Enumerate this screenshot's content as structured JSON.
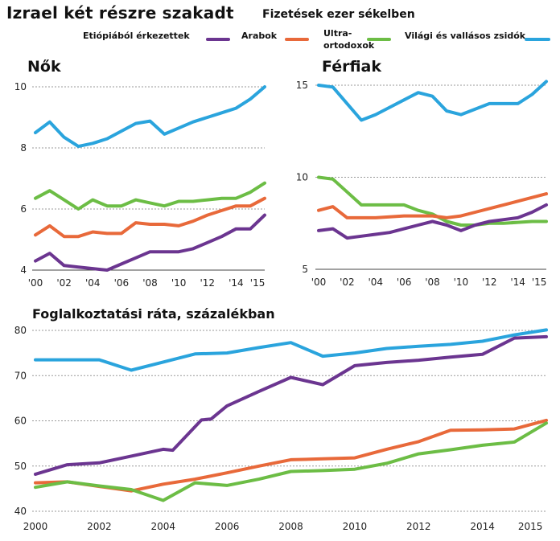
{
  "header": {
    "title": "Izrael két részre szakadt",
    "subtitle": "Fizetések ezer sékelben"
  },
  "legend": {
    "ethiopian": "Etiópiából érkezettek",
    "arab": "Arabok",
    "ultra_line1": "Ultra-",
    "ultra_line2": "ortodoxok",
    "secular": "Világi és vallásos zsidók"
  },
  "colors": {
    "ethiopian": "#6b3590",
    "arab": "#e8693a",
    "ultra": "#6cbd45",
    "secular": "#2aa4dd",
    "grid": "#999999"
  },
  "chart_data": [
    {
      "type": "line",
      "title": "Nők",
      "x_tick_labels": [
        "'00",
        "'02",
        "'04",
        "'06",
        "'08",
        "'10",
        "'12",
        "'14",
        "'15"
      ],
      "ylim": [
        4,
        10
      ],
      "y_ticks": [
        4,
        6,
        8,
        10
      ],
      "series": [
        {
          "key": "secular",
          "name": "Világi és vallásos zsidók",
          "x": [
            2000,
            2001,
            2002,
            2003,
            2004,
            2005,
            2006,
            2007,
            2008,
            2009,
            2010,
            2011,
            2012,
            2013,
            2014,
            2015,
            2016
          ],
          "values": [
            8.5,
            8.85,
            8.35,
            8.05,
            8.15,
            8.3,
            8.55,
            8.8,
            8.88,
            8.45,
            8.65,
            8.85,
            9.0,
            9.15,
            9.3,
            9.6,
            10.0
          ]
        },
        {
          "key": "ultra",
          "name": "Ultra-ortodoxok",
          "x": [
            2000,
            2001,
            2002,
            2003,
            2004,
            2005,
            2006,
            2007,
            2008,
            2009,
            2010,
            2011,
            2012,
            2013,
            2014,
            2015,
            2016
          ],
          "values": [
            6.35,
            6.6,
            6.3,
            6.0,
            6.3,
            6.1,
            6.1,
            6.3,
            6.2,
            6.1,
            6.25,
            6.25,
            6.3,
            6.35,
            6.35,
            6.55,
            6.85
          ]
        },
        {
          "key": "arab",
          "name": "Arabok",
          "x": [
            2000,
            2001,
            2002,
            2003,
            2004,
            2005,
            2006,
            2007,
            2008,
            2009,
            2010,
            2011,
            2012,
            2013,
            2014,
            2015,
            2016
          ],
          "values": [
            5.15,
            5.45,
            5.1,
            5.1,
            5.25,
            5.2,
            5.2,
            5.55,
            5.5,
            5.5,
            5.45,
            5.6,
            5.8,
            5.95,
            6.1,
            6.1,
            6.35
          ]
        },
        {
          "key": "ethiopian",
          "name": "Etiópiából érkezettek",
          "x": [
            2000,
            2001,
            2002,
            2003,
            2004,
            2005,
            2006,
            2007,
            2008,
            2009,
            2010,
            2011,
            2012,
            2013,
            2014,
            2015,
            2016
          ],
          "values": [
            4.3,
            4.55,
            4.15,
            4.1,
            4.05,
            4.0,
            4.2,
            4.4,
            4.6,
            4.6,
            4.6,
            4.7,
            4.9,
            5.1,
            5.35,
            5.35,
            5.8
          ]
        }
      ]
    },
    {
      "type": "line",
      "title": "Férfiak",
      "x_tick_labels": [
        "'00",
        "'02",
        "'04",
        "'06",
        "'08",
        "'10",
        "'12",
        "'14",
        "'15"
      ],
      "ylim": [
        5,
        15
      ],
      "y_ticks": [
        5,
        10,
        15
      ],
      "series": [
        {
          "key": "secular",
          "name": "Világi és vallásos zsidók",
          "x": [
            2000,
            2001,
            2002,
            2003,
            2004,
            2005,
            2006,
            2007,
            2008,
            2009,
            2010,
            2011,
            2012,
            2013,
            2014,
            2015,
            2016
          ],
          "values": [
            15.0,
            14.9,
            14.0,
            13.1,
            13.4,
            13.8,
            14.2,
            14.6,
            14.4,
            13.6,
            13.4,
            13.7,
            14.0,
            14.0,
            14.0,
            14.5,
            15.2
          ]
        },
        {
          "key": "ultra",
          "name": "Ultra-ortodoxok",
          "x": [
            2000,
            2001,
            2002,
            2003,
            2004,
            2005,
            2006,
            2007,
            2008,
            2009,
            2010,
            2011,
            2012,
            2013,
            2014,
            2015,
            2016
          ],
          "values": [
            10.0,
            9.9,
            9.2,
            8.5,
            8.5,
            8.5,
            8.5,
            8.2,
            8.0,
            7.6,
            7.4,
            7.4,
            7.5,
            7.5,
            7.55,
            7.6,
            7.6
          ]
        },
        {
          "key": "arab",
          "name": "Arabok",
          "x": [
            2000,
            2001,
            2002,
            2003,
            2004,
            2005,
            2006,
            2007,
            2008,
            2009,
            2010,
            2011,
            2012,
            2013,
            2014,
            2015,
            2016
          ],
          "values": [
            8.2,
            8.4,
            7.8,
            7.8,
            7.8,
            7.85,
            7.9,
            7.9,
            7.9,
            7.8,
            7.9,
            8.1,
            8.3,
            8.5,
            8.7,
            8.9,
            9.1
          ]
        },
        {
          "key": "ethiopian",
          "name": "Etiópiából érkezettek",
          "x": [
            2000,
            2001,
            2002,
            2003,
            2004,
            2005,
            2006,
            2007,
            2008,
            2009,
            2010,
            2011,
            2012,
            2013,
            2014,
            2015,
            2016
          ],
          "values": [
            7.1,
            7.2,
            6.7,
            6.8,
            6.9,
            7.0,
            7.2,
            7.4,
            7.6,
            7.4,
            7.1,
            7.4,
            7.6,
            7.7,
            7.8,
            8.1,
            8.5
          ]
        }
      ]
    },
    {
      "type": "line",
      "title": "Foglalkoztatási ráta, százalékban",
      "x_tick_labels": [
        "2000",
        "2002",
        "2004",
        "2006",
        "2008",
        "2010",
        "2012",
        "2014",
        "2015"
      ],
      "ylim": [
        40,
        80
      ],
      "y_ticks": [
        40,
        50,
        60,
        70,
        80
      ],
      "series": [
        {
          "key": "secular",
          "name": "Világi és vallásos zsidók",
          "x": [
            2000,
            2001,
            2002,
            2003,
            2004,
            2005,
            2006,
            2007,
            2008,
            2009,
            2010,
            2011,
            2012,
            2013,
            2014,
            2015,
            2016
          ],
          "values": [
            73.5,
            73.5,
            73.5,
            71.2,
            73.0,
            74.8,
            75.0,
            76.2,
            77.3,
            74.3,
            75.0,
            76.0,
            76.5,
            76.9,
            77.6,
            79.0,
            80.1
          ]
        },
        {
          "key": "ethiopian",
          "name": "Etiópiából érkezettek",
          "x": [
            2000,
            2001,
            2002,
            2003,
            2004,
            2004.3,
            2005.2,
            2005.5,
            2006,
            2007,
            2008,
            2009,
            2010,
            2011,
            2012,
            2013,
            2014,
            2015,
            2016
          ],
          "values": [
            48.2,
            50.3,
            50.7,
            52.2,
            53.7,
            53.5,
            60.2,
            60.4,
            63.3,
            66.5,
            69.6,
            68.0,
            72.2,
            72.9,
            73.4,
            74.1,
            74.7,
            78.3,
            78.6
          ]
        },
        {
          "key": "arab",
          "name": "Arabok",
          "x": [
            2000,
            2001,
            2002,
            2003,
            2004,
            2005,
            2006,
            2007,
            2008,
            2009,
            2010,
            2011,
            2012,
            2013,
            2014,
            2015,
            2016
          ],
          "values": [
            46.3,
            46.5,
            45.5,
            44.5,
            46.0,
            47.1,
            48.5,
            50.0,
            51.4,
            51.6,
            51.8,
            53.7,
            55.4,
            57.9,
            58.0,
            58.2,
            60.1
          ]
        },
        {
          "key": "ultra",
          "name": "Ultra-ortodoxok",
          "x": [
            2000,
            2001,
            2002,
            2003,
            2004,
            2005,
            2006,
            2007,
            2008,
            2009,
            2010,
            2011,
            2012,
            2013,
            2014,
            2015,
            2016
          ],
          "values": [
            45.3,
            46.5,
            45.6,
            44.8,
            42.4,
            46.3,
            45.7,
            47.1,
            48.8,
            49.0,
            49.3,
            50.6,
            52.7,
            53.6,
            54.6,
            55.3,
            59.5
          ]
        }
      ]
    }
  ]
}
